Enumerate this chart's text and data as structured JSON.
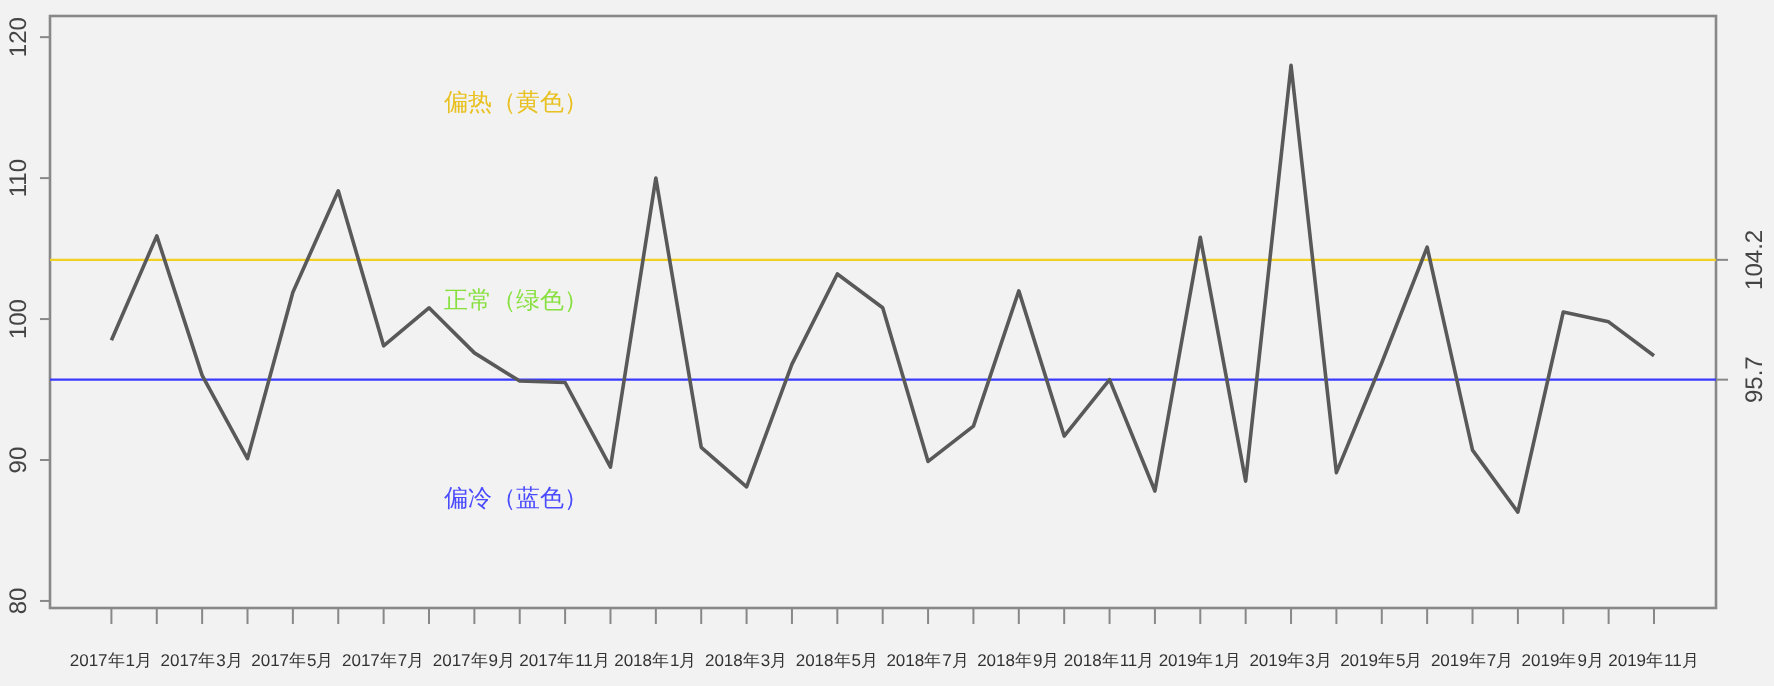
{
  "chart_data": {
    "type": "line",
    "categories": [
      "2017年1月",
      null,
      "2017年3月",
      null,
      "2017年5月",
      null,
      "2017年7月",
      null,
      "2017年9月",
      null,
      "2017年11月",
      null,
      "2018年1月",
      null,
      "2018年3月",
      null,
      "2018年5月",
      null,
      "2018年7月",
      null,
      "2018年9月",
      null,
      "2018年11月",
      null,
      "2019年1月",
      null,
      "2019年3月",
      null,
      "2019年5月",
      null,
      "2019年7月",
      null,
      "2019年9月",
      null,
      "2019年11月"
    ],
    "series": [
      {
        "color": "#595959",
        "values": [
          98.5,
          105.9,
          96.0,
          90.1,
          101.9,
          109.1,
          98.1,
          100.8,
          97.6,
          95.6,
          95.5,
          89.5,
          110.0,
          90.9,
          88.1,
          96.8,
          103.2,
          100.8,
          89.9,
          92.4,
          102.0,
          91.7,
          95.7,
          87.8,
          105.8,
          88.5,
          118.0,
          89.1,
          96.9,
          105.1,
          90.7,
          86.3,
          100.5,
          99.8,
          97.4
        ]
      }
    ],
    "ylim": [
      79.5,
      121.5
    ],
    "yticks": [
      80,
      90,
      100,
      110,
      120
    ],
    "y2lim": [
      79.5,
      121.5
    ],
    "y2ticks": [
      95.7,
      104.2
    ],
    "ref_lines": [
      {
        "axis": "y",
        "value": 104.2,
        "color": "#f0d020"
      },
      {
        "axis": "y",
        "value": 95.7,
        "color": "#3a3aff"
      }
    ],
    "annotations": [
      "偏热（黄色）",
      "正常（绿色）",
      "偏冷（蓝色）"
    ],
    "grid": false,
    "marker": "none",
    "line_style": "solid"
  }
}
